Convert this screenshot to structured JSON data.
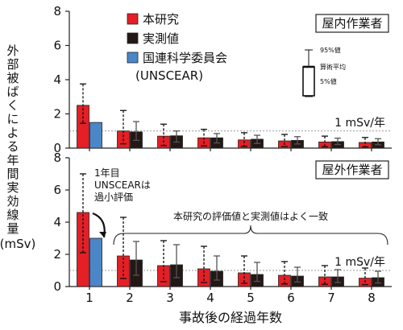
{
  "chart_data": {
    "type": "bar",
    "categories": [
      "1",
      "2",
      "3",
      "4",
      "5",
      "6",
      "7",
      "8"
    ],
    "xlabel": "事故後の経過年数",
    "ylabel": "外部被ばくによる年間実効線量",
    "ylabel_unit": "(mSv)",
    "legend": {
      "items": [
        {
          "key": "model",
          "label": "本研究",
          "color": "#e41f26"
        },
        {
          "key": "measured",
          "label": "実測値",
          "color": "#231815"
        },
        {
          "key": "unscear",
          "label": "国連科学委員会",
          "label2": "(UNSCEAR)",
          "color": "#4a86c8"
        }
      ],
      "inset": {
        "p95": "95%値",
        "mean": "算術平均",
        "p5": "5%値"
      }
    },
    "panels": [
      {
        "name": "indoor",
        "title": "屋内作業者",
        "ylim": [
          0,
          8
        ],
        "yticks": [
          0,
          2,
          4,
          6,
          8
        ],
        "reference": {
          "value": 1,
          "label": "1 mSv/年"
        },
        "series": [
          {
            "key": "model",
            "name": "本研究",
            "color": "#e41f26",
            "values": [
              2.5,
              1.0,
              0.7,
              0.6,
              0.48,
              0.42,
              0.36,
              0.33
            ],
            "err_high": [
              3.75,
              2.2,
              1.4,
              1.1,
              0.9,
              0.8,
              0.7,
              0.62
            ],
            "err_low": [
              1.45,
              0.25,
              0.15,
              0.13,
              0.1,
              0.09,
              0.08,
              0.07
            ]
          },
          {
            "key": "measured",
            "name": "実測値",
            "color": "#231815",
            "values": [
              null,
              0.95,
              0.72,
              0.6,
              0.52,
              0.45,
              0.38,
              0.36
            ],
            "err_high": [
              null,
              1.55,
              1.0,
              0.85,
              0.75,
              0.67,
              0.58,
              0.55
            ],
            "err_low": [
              null,
              0.45,
              0.35,
              0.3,
              0.27,
              0.24,
              0.21,
              0.2
            ]
          },
          {
            "key": "unscear",
            "name": "国連科学委員会",
            "color": "#4a86c8",
            "values": [
              1.5,
              null,
              null,
              null,
              null,
              null,
              null,
              null
            ]
          }
        ]
      },
      {
        "name": "outdoor",
        "title": "屋外作業者",
        "ylim": [
          0,
          8
        ],
        "yticks": [
          0,
          2,
          4,
          6,
          8
        ],
        "reference": {
          "value": 1,
          "label": "1 mSv/年"
        },
        "annotations": {
          "year1": [
            "1年目",
            "UNSCEARは",
            "過小評価"
          ],
          "summary": "本研究の評価値と実測値はよく一致"
        },
        "series": [
          {
            "key": "model",
            "name": "本研究",
            "color": "#e41f26",
            "values": [
              4.6,
              1.9,
              1.3,
              1.1,
              0.85,
              0.7,
              0.6,
              0.52
            ],
            "err_high": [
              7.0,
              4.3,
              2.85,
              2.5,
              1.9,
              1.55,
              1.3,
              1.15
            ],
            "err_low": [
              2.1,
              0.5,
              0.3,
              0.25,
              0.2,
              0.16,
              0.14,
              0.12
            ]
          },
          {
            "key": "measured",
            "name": "実測値",
            "color": "#231815",
            "values": [
              null,
              1.65,
              1.35,
              0.95,
              0.75,
              0.65,
              0.6,
              0.55
            ],
            "err_high": [
              null,
              2.8,
              2.6,
              1.9,
              1.5,
              1.2,
              1.05,
              0.95
            ],
            "err_low": [
              null,
              0.7,
              0.55,
              0.4,
              0.32,
              0.28,
              0.25,
              0.22
            ]
          },
          {
            "key": "unscear",
            "name": "国連科学委員会",
            "color": "#4a86c8",
            "values": [
              3.0,
              null,
              null,
              null,
              null,
              null,
              null,
              null
            ]
          }
        ]
      }
    ]
  }
}
